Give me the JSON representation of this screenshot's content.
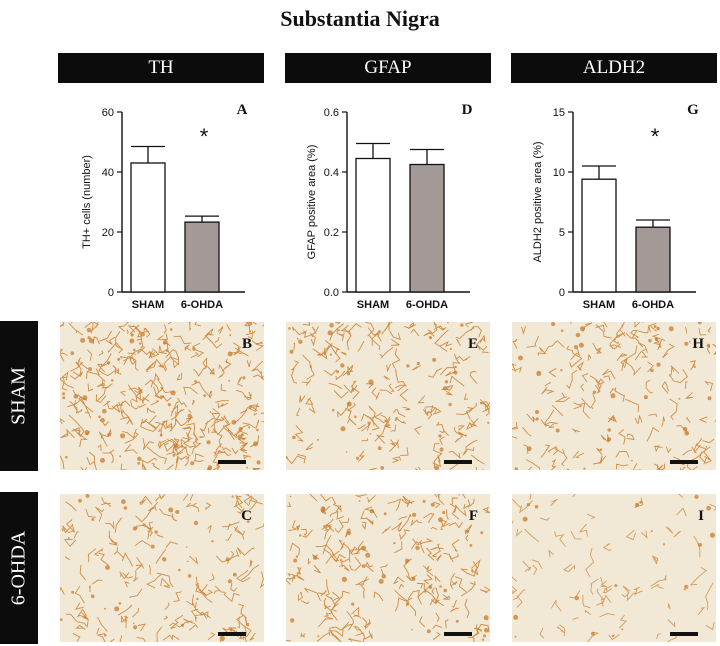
{
  "title": "Substantia Nigra",
  "columns": [
    "TH",
    "GFAP",
    "ALDH2"
  ],
  "rows": [
    "SHAM",
    "6-OHDA"
  ],
  "panel_letters": {
    "sham": [
      "B",
      "E",
      "H"
    ],
    "ohda": [
      "C",
      "F",
      "I"
    ]
  },
  "colors": {
    "sham_bar": "#ffffff",
    "ohda_bar": "#a39a98",
    "tissue_bg": "#f1e9d6",
    "stain": "#c8741f"
  },
  "chart_data": [
    {
      "type": "bar",
      "panel_letter": "A",
      "ylabel": "TH+ cells (number)",
      "categories": [
        "SHAM",
        "6-OHDA"
      ],
      "values": [
        43,
        23.3
      ],
      "errors": [
        5.5,
        2
      ],
      "ylim": [
        0,
        60
      ],
      "yticks": [
        0,
        20,
        40,
        60
      ],
      "ytick_labels": [
        "0",
        "20",
        "40",
        "60"
      ],
      "significance": "*"
    },
    {
      "type": "bar",
      "panel_letter": "D",
      "ylabel": "GFAP positive area (%)",
      "categories": [
        "SHAM",
        "6-OHDA"
      ],
      "values": [
        0.445,
        0.425
      ],
      "errors": [
        0.05,
        0.05
      ],
      "ylim": [
        0,
        0.6
      ],
      "yticks": [
        0,
        0.2,
        0.4,
        0.6
      ],
      "ytick_labels": [
        "0.0",
        "0.2",
        "0.4",
        "0.6"
      ],
      "significance": ""
    },
    {
      "type": "bar",
      "panel_letter": "G",
      "ylabel": "ALDH2 positive area (%)",
      "categories": [
        "SHAM",
        "6-OHDA"
      ],
      "values": [
        9.4,
        5.4
      ],
      "errors": [
        1.1,
        0.6
      ],
      "ylim": [
        0,
        15
      ],
      "yticks": [
        0,
        5,
        10,
        15
      ],
      "ytick_labels": [
        "0",
        "5",
        "10",
        "15"
      ],
      "significance": "*"
    }
  ]
}
